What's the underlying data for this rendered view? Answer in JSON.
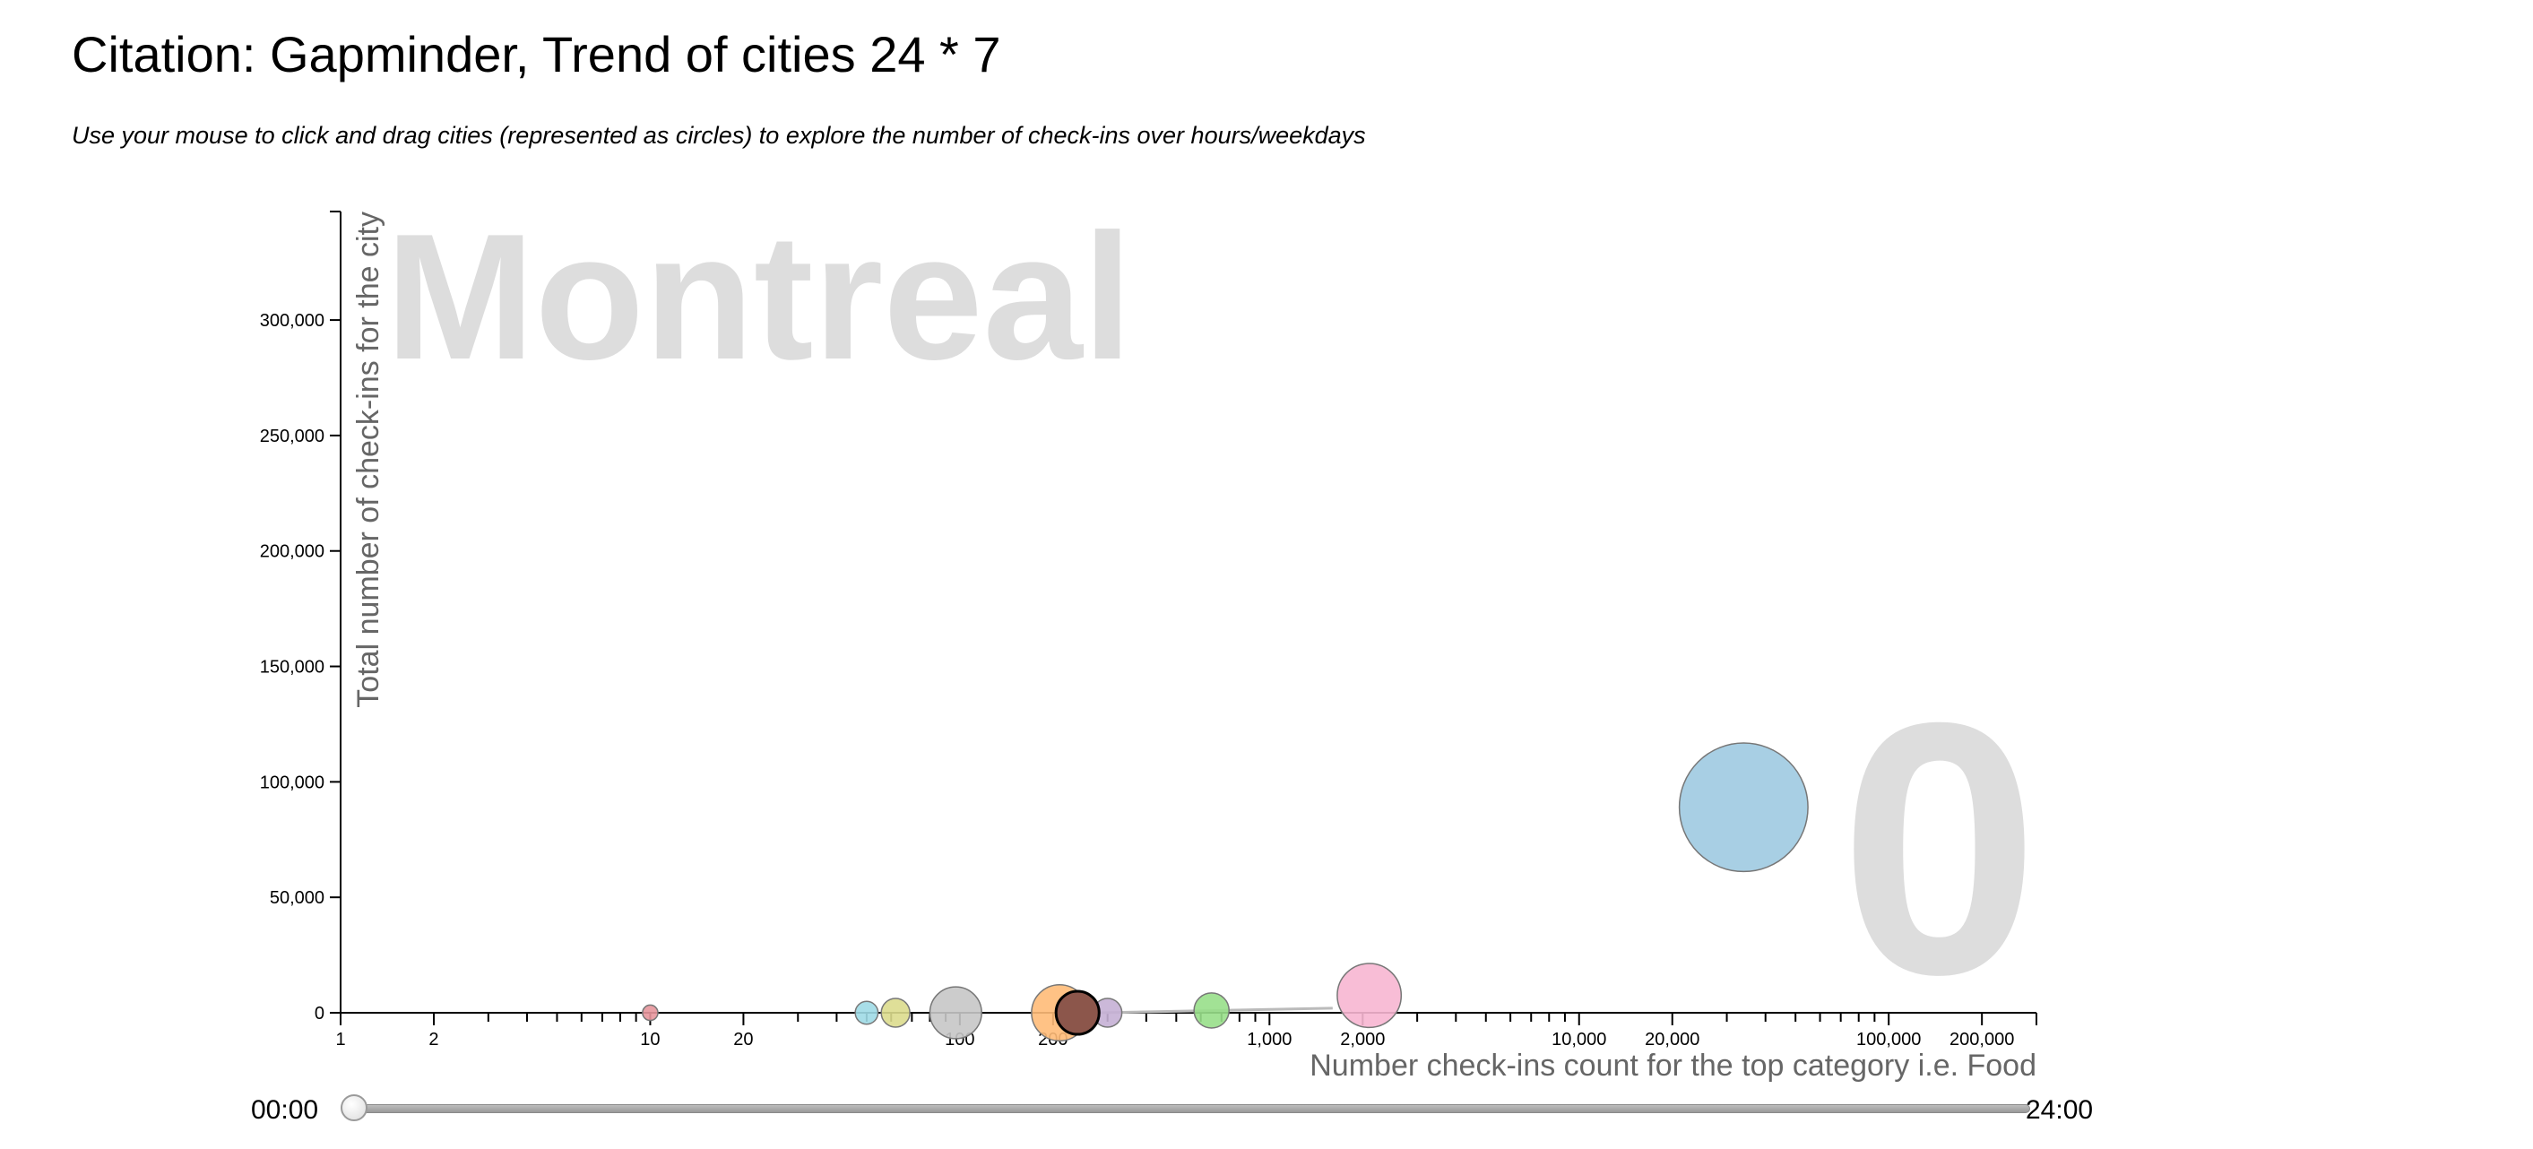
{
  "title": "Citation: Gapminder, Trend of cities 24 * 7",
  "subtitle": "Use your mouse to click and drag cities (represented as circles) to explore the number of check-ins over hours/weekdays",
  "slider": {
    "start_label": "00:00",
    "end_label": "24:00",
    "value": 0
  },
  "chart_data": {
    "type": "scatter",
    "xlabel": "Number check-ins count for the top category i.e. Food",
    "ylabel": "Total number of check-ins for the city",
    "x_scale": "log",
    "xlim": [
      1,
      300000
    ],
    "ylim": [
      0,
      347000
    ],
    "x_ticks": [
      {
        "value": 1,
        "label": "1"
      },
      {
        "value": 2,
        "label": "2"
      },
      {
        "value": 10,
        "label": "10"
      },
      {
        "value": 20,
        "label": "20"
      },
      {
        "value": 100,
        "label": "100"
      },
      {
        "value": 200,
        "label": "200"
      },
      {
        "value": 1000,
        "label": "1,000"
      },
      {
        "value": 2000,
        "label": "2,000"
      },
      {
        "value": 10000,
        "label": "10,000"
      },
      {
        "value": 20000,
        "label": "20,000"
      },
      {
        "value": 100000,
        "label": "100,000"
      },
      {
        "value": 200000,
        "label": "200,000"
      }
    ],
    "y_ticks": [
      {
        "value": 0,
        "label": "0"
      },
      {
        "value": 50000,
        "label": "50,000"
      },
      {
        "value": 100000,
        "label": "100,000"
      },
      {
        "value": 150000,
        "label": "150,000"
      },
      {
        "value": 200000,
        "label": "200,000"
      },
      {
        "value": 250000,
        "label": "250,000"
      },
      {
        "value": 300000,
        "label": "300,000"
      }
    ],
    "highlight_label": "Montreal",
    "time_label": "0",
    "trail": {
      "x1": 280,
      "y1": 0,
      "x2": 1600,
      "y2": 2000
    },
    "points": [
      {
        "x": 10,
        "y": 0,
        "size": 150,
        "color": "#e7969c"
      },
      {
        "x": 50,
        "y": 0,
        "size": 330,
        "color": "#9edae5"
      },
      {
        "x": 62,
        "y": 0,
        "size": 520,
        "color": "#dbdb8d"
      },
      {
        "x": 97,
        "y": 0,
        "size": 1700,
        "color": "#c7c7c7"
      },
      {
        "x": 300,
        "y": 0,
        "size": 520,
        "color": "#c5b0d5"
      },
      {
        "x": 210,
        "y": 0,
        "size": 2000,
        "color": "#ffbb78"
      },
      {
        "x": 240,
        "y": 0,
        "size": 1180,
        "color": "#8c564b",
        "highlighted": true
      },
      {
        "x": 650,
        "y": 1000,
        "size": 780,
        "color": "#98df8a"
      },
      {
        "x": 2100,
        "y": 7500,
        "size": 2600,
        "color": "#f7b6d2"
      },
      {
        "x": 34000,
        "y": 89000,
        "size": 10500,
        "color": "#9ecae1"
      }
    ]
  }
}
